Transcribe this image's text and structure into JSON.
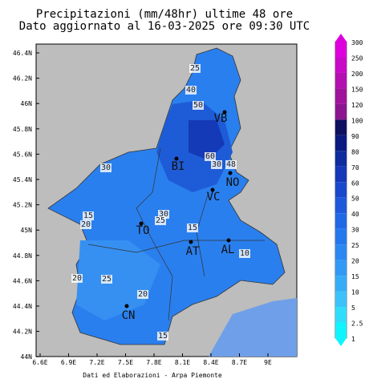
{
  "title": [
    "Precipitazioni (mm/48hr) ultime 48 ore",
    "Dato aggiornato al 16-03-2025 ore 09:30 UTC"
  ],
  "map": {
    "lat_ticks": [
      "46.4N",
      "46.2N",
      "46N",
      "45.8N",
      "45.6N",
      "45.4N",
      "45.2N",
      "45N",
      "44.8N",
      "44.6N",
      "44.4N",
      "44.2N",
      "44N"
    ],
    "lon_ticks": [
      "6.6E",
      "6.9E",
      "7.2E",
      "7.5E",
      "7.8E",
      "8.1E",
      "8.4E",
      "8.7E",
      "9E"
    ],
    "cities": [
      "VB",
      "BI",
      "NO",
      "VC",
      "TO",
      "AT",
      "AL",
      "CN"
    ],
    "contour_labels": [
      "25",
      "40",
      "50",
      "60",
      "30",
      "30",
      "48",
      "15",
      "20",
      "30",
      "25",
      "15",
      "10",
      "20",
      "25",
      "20",
      "15"
    ]
  },
  "colorbar": {
    "levels": [
      300,
      250,
      200,
      150,
      120,
      100,
      90,
      80,
      70,
      60,
      50,
      40,
      30,
      25,
      20,
      15,
      10,
      5,
      2.5,
      1
    ],
    "colors": [
      "#dd00dd",
      "#c80ac8",
      "#b40fb0",
      "#a0129c",
      "#8c1490",
      "#101060",
      "#0a1a80",
      "#0e2c9e",
      "#1438b8",
      "#1a48cc",
      "#1e58dc",
      "#2068e6",
      "#2478ee",
      "#2a88f2",
      "#309af6",
      "#36acf8",
      "#3cc2fa",
      "#30dcfc",
      "#10f4ff"
    ]
  },
  "footer": "Dati ed Elaborazioni - Arpa Piemonte"
}
